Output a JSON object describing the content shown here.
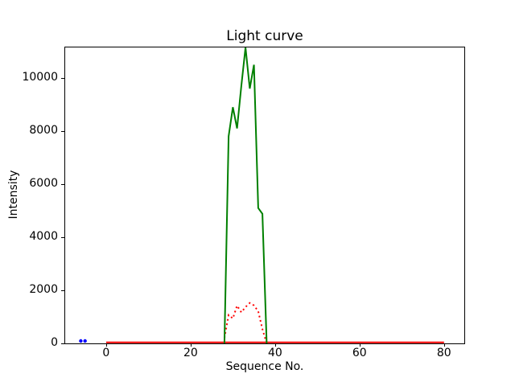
{
  "chart_data": {
    "type": "line",
    "title": "Light curve",
    "xlabel": "Sequence No.",
    "ylabel": "Intensity",
    "xlim": [
      -9.7,
      84.8
    ],
    "ylim": [
      0,
      11150
    ],
    "x_ticks": [
      0,
      20,
      40,
      60,
      80
    ],
    "y_ticks": [
      0,
      2000,
      4000,
      6000,
      8000,
      10000
    ],
    "grid": false,
    "legend": null,
    "background": "#ffffff",
    "spine_color": "#000000",
    "series": [
      {
        "name": "blue-markers",
        "type": "scatter",
        "color": "#0000ff",
        "marker_size": 2.2,
        "x": [
          -6,
          -5
        ],
        "y": [
          90,
          90
        ]
      },
      {
        "name": "red-baseline",
        "type": "line",
        "style": "solid",
        "color": "#ff0000",
        "width": 2,
        "x": [
          0,
          80
        ],
        "y": [
          40,
          40
        ]
      },
      {
        "name": "red-dotted-bump",
        "type": "line",
        "style": "dotted",
        "color": "#ff0000",
        "width": 2,
        "x": [
          28,
          29,
          30,
          31,
          32,
          33,
          34,
          35,
          36,
          37,
          38
        ],
        "y": [
          200,
          1070,
          940,
          1420,
          1170,
          1370,
          1520,
          1430,
          1210,
          540,
          0
        ]
      },
      {
        "name": "green-curve",
        "type": "line",
        "style": "solid",
        "color": "#008000",
        "width": 2,
        "x": [
          28,
          29,
          30,
          31,
          32,
          33,
          34,
          35,
          36,
          37,
          38
        ],
        "y": [
          0,
          7800,
          8900,
          8100,
          9700,
          11150,
          9600,
          10500,
          5100,
          4880,
          0
        ]
      }
    ]
  }
}
